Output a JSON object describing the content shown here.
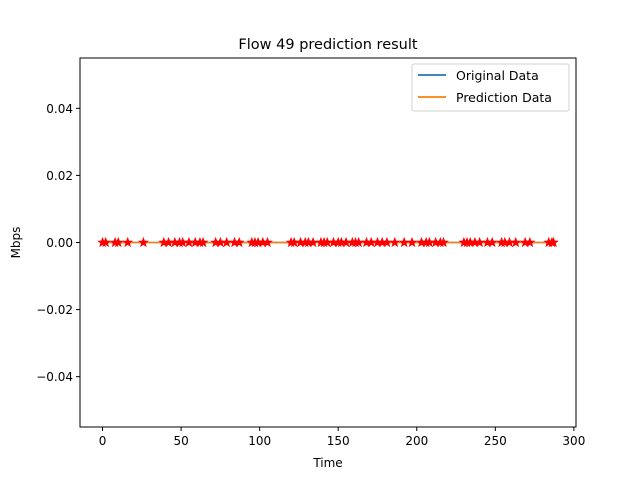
{
  "chart_data": {
    "type": "line",
    "title": "Flow 49 prediction result",
    "xlabel": "Time",
    "ylabel": "Mbps",
    "xlim": [
      -14.35,
      301.35
    ],
    "ylim": [
      -0.055,
      0.055
    ],
    "xticks": [
      0,
      50,
      100,
      150,
      200,
      250,
      300
    ],
    "yticks": [
      -0.04,
      -0.02,
      0.0,
      0.02,
      0.04
    ],
    "xtick_labels": [
      "0",
      "50",
      "100",
      "150",
      "200",
      "250",
      "300"
    ],
    "ytick_labels": [
      "−0.04",
      "−0.02",
      "0.00",
      "0.02",
      "0.04"
    ],
    "grid": false,
    "legend_position": "top-right",
    "series": [
      {
        "name": "Original Data",
        "color": "#1f77b4",
        "x_range": [
          0,
          287
        ],
        "value": 0.0
      },
      {
        "name": "Prediction Data",
        "color": "#ff7f0e",
        "x_range": [
          0,
          287
        ],
        "value": 0.0
      }
    ],
    "markers": {
      "color": "#ff0000",
      "symbol": "star",
      "y": 0.0,
      "x": [
        0,
        2,
        8,
        10,
        16,
        26,
        39,
        42,
        46,
        49,
        51,
        55,
        59,
        62,
        64,
        72,
        75,
        79,
        84,
        87,
        95,
        97,
        99,
        102,
        105,
        120,
        122,
        126,
        129,
        131,
        134,
        139,
        141,
        143,
        147,
        150,
        152,
        155,
        159,
        161,
        163,
        168,
        171,
        175,
        178,
        181,
        186,
        192,
        197,
        203,
        206,
        208,
        212,
        215,
        217,
        230,
        232,
        234,
        237,
        240,
        245,
        248,
        254,
        256,
        259,
        263,
        269,
        272,
        284,
        286,
        287
      ]
    }
  }
}
